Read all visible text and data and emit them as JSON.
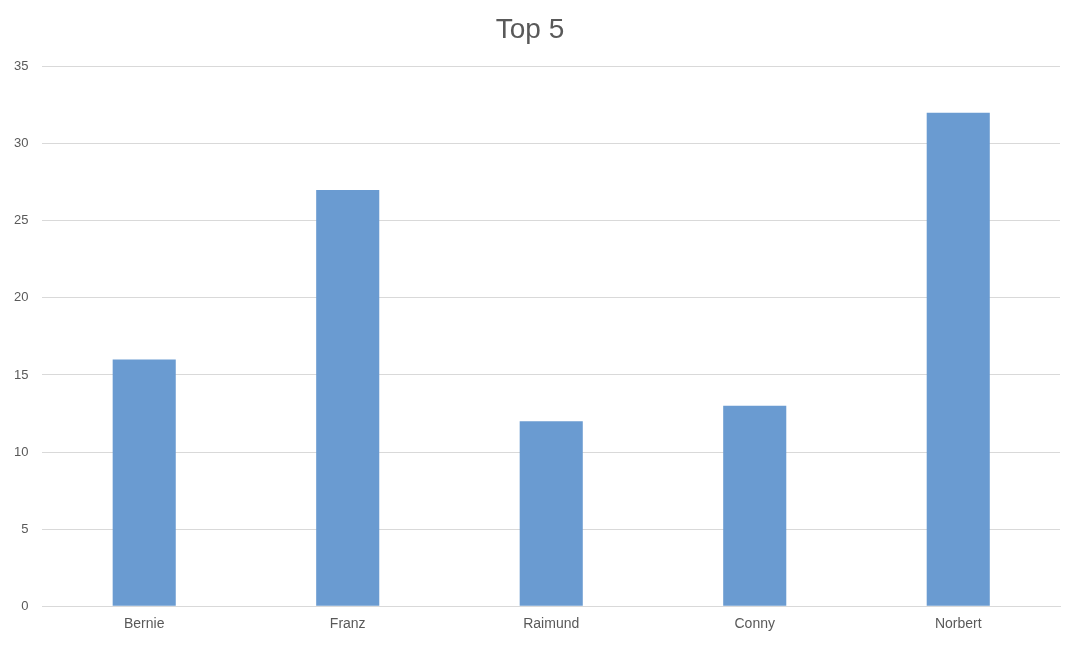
{
  "chart_data": {
    "type": "bar",
    "title": "Top 5",
    "categories": [
      "Bernie",
      "Franz",
      "Raimund",
      "Conny",
      "Norbert"
    ],
    "values": [
      16,
      27,
      12,
      13,
      32
    ],
    "color": "#6a9bd1",
    "ylim": [
      0,
      35
    ],
    "yticks": [
      0,
      5,
      10,
      15,
      20,
      25,
      30,
      35
    ],
    "grid": "y"
  }
}
